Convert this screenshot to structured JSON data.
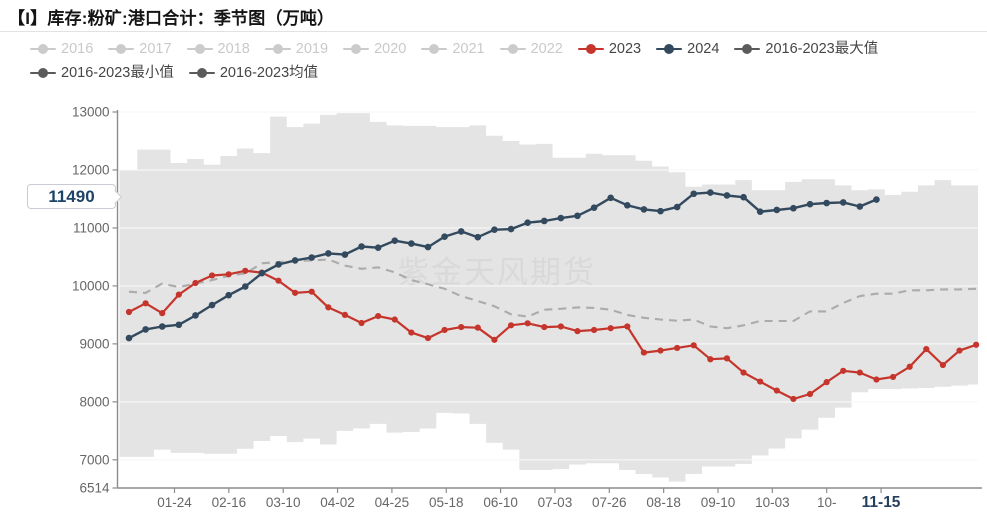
{
  "title": "【I】库存:粉矿:港口合计：季节图（万吨）",
  "watermark": "紫金天风期货",
  "latest_value": {
    "value": "11490"
  },
  "colors": {
    "red_2023": "#c5352c",
    "navy_2024": "#33495e",
    "band_fill": "#e4e4e4",
    "mean_line": "#ababab",
    "band_legend_marker": "#5b5b5b",
    "inactive_legend": "#cbcbcb",
    "axis": "#8c8c8c",
    "tick_text": "#666666",
    "highlight_tick_text": "#24405c",
    "watermark_text": "#d9d9d9"
  },
  "legend": {
    "rows": [
      [
        {
          "label": "2016",
          "color": "#cbcbcb",
          "text_color": "#c9c9c9",
          "active": false
        },
        {
          "label": "2017",
          "color": "#cbcbcb",
          "text_color": "#c9c9c9",
          "active": false
        },
        {
          "label": "2018",
          "color": "#cbcbcb",
          "text_color": "#c9c9c9",
          "active": false
        },
        {
          "label": "2019",
          "color": "#cbcbcb",
          "text_color": "#c9c9c9",
          "active": false
        },
        {
          "label": "2020",
          "color": "#cbcbcb",
          "text_color": "#c9c9c9",
          "active": false
        },
        {
          "label": "2021",
          "color": "#cbcbcb",
          "text_color": "#c9c9c9",
          "active": false
        },
        {
          "label": "2022",
          "color": "#cbcbcb",
          "text_color": "#c9c9c9",
          "active": false
        },
        {
          "label": "2023",
          "color": "#c5352c",
          "text_color": "#464646",
          "active": true
        },
        {
          "label": "2024",
          "color": "#33495e",
          "text_color": "#464646",
          "active": true
        },
        {
          "label": "2016-2023最大值",
          "color": "#5b5b5b",
          "text_color": "#464646",
          "active": true
        }
      ],
      [
        {
          "label": "2016-2023最小值",
          "color": "#5b5b5b",
          "text_color": "#464646",
          "active": true
        },
        {
          "label": "2016-2023均值",
          "color": "#5b5b5b",
          "text_color": "#464646",
          "active": true
        }
      ]
    ]
  },
  "chart_data": {
    "type": "line",
    "title": "【I】库存:粉矿:港口合计：季节图（万吨）",
    "xlabel": "",
    "ylabel": "",
    "ylim": [
      6514,
      13000
    ],
    "y_ticks": [
      13000,
      12000,
      11000,
      10000,
      9000,
      8000,
      7000,
      6514
    ],
    "x_tick_labels": [
      "01-24",
      "02-16",
      "03-10",
      "04-02",
      "04-25",
      "05-18",
      "06-10",
      "07-03",
      "07-26",
      "08-18",
      "09-10",
      "10-03",
      "10-",
      "11-15"
    ],
    "highlighted_x_tick": "11-15",
    "grid": true,
    "legend_position": "top",
    "x_unit": "week-of-year index, 52 weekly points spanning Jan–Dec",
    "series": [
      {
        "name": "2016-2023最大值",
        "role": "max",
        "render": "band-upper-step",
        "color": "#5b5b5b",
        "values": [
          12000,
          12350,
          12350,
          12120,
          12190,
          12090,
          12240,
          12370,
          12290,
          12920,
          12740,
          12800,
          12950,
          12980,
          12980,
          12830,
          12770,
          12760,
          12760,
          12740,
          12740,
          12770,
          12590,
          12500,
          12440,
          12450,
          12210,
          12210,
          12280,
          12255,
          12255,
          12160,
          12060,
          11960,
          11710,
          11750,
          11750,
          11825,
          11650,
          11650,
          11795,
          11840,
          11840,
          11735,
          11650,
          11665,
          11570,
          11625,
          11735,
          11825,
          11735,
          11735
        ]
      },
      {
        "name": "2016-2023最小值",
        "role": "min",
        "render": "band-lower-step",
        "color": "#5b5b5b",
        "values": [
          7050,
          7050,
          7175,
          7120,
          7120,
          7105,
          7105,
          7190,
          7325,
          7410,
          7305,
          7365,
          7265,
          7500,
          7540,
          7620,
          7470,
          7480,
          7540,
          7810,
          7800,
          7620,
          7295,
          7175,
          6825,
          6825,
          6840,
          6920,
          6940,
          6940,
          6825,
          6755,
          6695,
          6625,
          6755,
          6885,
          6885,
          6930,
          7075,
          7195,
          7370,
          7520,
          7725,
          7900,
          8165,
          8220,
          8220,
          8230,
          8240,
          8260,
          8280,
          8300
        ]
      },
      {
        "name": "2016-2023均值",
        "role": "mean",
        "render": "dashed-line",
        "color": "#ababab",
        "values": [
          9900,
          9880,
          10040,
          9980,
          10040,
          10100,
          10175,
          10215,
          10390,
          10410,
          10430,
          10440,
          10455,
          10350,
          10295,
          10320,
          10235,
          10100,
          10030,
          9950,
          9825,
          9740,
          9650,
          9510,
          9470,
          9590,
          9605,
          9630,
          9620,
          9590,
          9500,
          9450,
          9420,
          9400,
          9420,
          9300,
          9270,
          9320,
          9395,
          9395,
          9395,
          9560,
          9560,
          9705,
          9825,
          9865,
          9865,
          9925,
          9925,
          9940,
          9940,
          9950
        ]
      },
      {
        "name": "2023",
        "role": "y2023",
        "render": "line-with-dots",
        "color": "#c5352c",
        "values": [
          9550,
          9700,
          9530,
          9850,
          10050,
          10180,
          10200,
          10260,
          10230,
          10090,
          9880,
          9900,
          9630,
          9500,
          9360,
          9480,
          9420,
          9195,
          9100,
          9240,
          9290,
          9280,
          9070,
          9320,
          9355,
          9290,
          9300,
          9220,
          9240,
          9270,
          9300,
          8850,
          8885,
          8930,
          8975,
          8735,
          8750,
          8505,
          8350,
          8195,
          8050,
          8135,
          8340,
          8535,
          8505,
          8385,
          8430,
          8605,
          8910,
          8635,
          8885,
          8985
        ]
      },
      {
        "name": "2024",
        "role": "y2024",
        "render": "line-with-dots",
        "color": "#33495e",
        "last_value_badge": "11490",
        "values": [
          9100,
          9250,
          9300,
          9330,
          9490,
          9670,
          9840,
          9990,
          10220,
          10370,
          10440,
          10490,
          10560,
          10540,
          10680,
          10660,
          10780,
          10730,
          10670,
          10850,
          10940,
          10840,
          10970,
          10980,
          11090,
          11120,
          11170,
          11210,
          11350,
          11520,
          11390,
          11320,
          11290,
          11360,
          11590,
          11610,
          11560,
          11530,
          11280,
          11310,
          11340,
          11410,
          11430,
          11440,
          11370,
          11490
        ]
      }
    ]
  }
}
